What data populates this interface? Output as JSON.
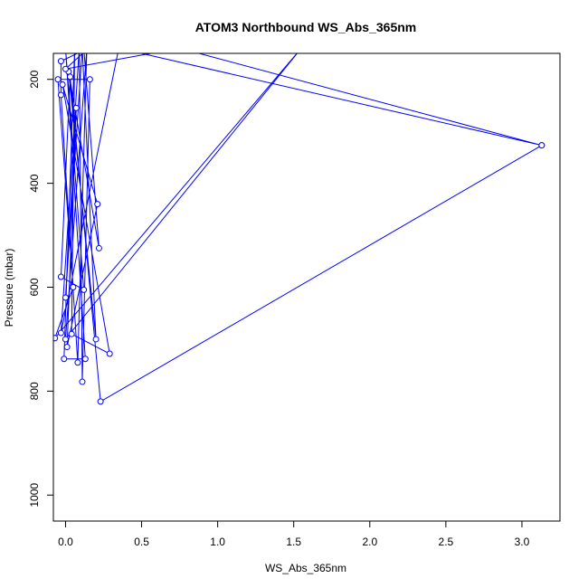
{
  "chart_data": {
    "type": "line",
    "title": "ATOM3 Northbound WS_Abs_365nm",
    "xlabel": "WS_Abs_365nm",
    "ylabel": "Pressure (mbar)",
    "xlim": [
      -0.08,
      3.25
    ],
    "ylim": [
      1050,
      150
    ],
    "y_reversed": true,
    "x_ticks": [
      0.0,
      0.5,
      1.0,
      1.5,
      2.0,
      2.5,
      3.0
    ],
    "x_tick_labels": [
      "0.0",
      "0.5",
      "1.0",
      "1.5",
      "2.0",
      "2.5",
      "3.0"
    ],
    "y_ticks": [
      200,
      400,
      600,
      800,
      1000
    ],
    "y_tick_labels": [
      "200",
      "400",
      "600",
      "800",
      "1000"
    ],
    "grid": false,
    "marker": "open-circle",
    "series_color": "#0000ff",
    "series": [
      {
        "points": [
          [
            0.12,
            140
          ],
          [
            0.22,
            525
          ],
          [
            0.02,
            185
          ],
          [
            0.2,
            700
          ],
          [
            0.11,
            140
          ],
          [
            0.0,
            620
          ],
          [
            0.07,
            255
          ],
          [
            0.01,
            715
          ],
          [
            0.21,
            440
          ],
          [
            -0.02,
            210
          ],
          [
            0.29,
            728
          ],
          [
            0.04,
            690
          ],
          [
            0.06,
            140
          ],
          [
            -0.01,
            738
          ],
          [
            0.13,
            738
          ],
          [
            0.0,
            140
          ],
          [
            0.12,
            605
          ],
          [
            -0.03,
            580
          ],
          [
            0.03,
            195
          ],
          [
            0.23,
            820
          ],
          [
            3.13,
            327
          ],
          [
            0.35,
            140
          ],
          [
            -0.03,
            688
          ],
          [
            0.09,
            140
          ],
          [
            0.11,
            782
          ],
          [
            0.16,
            200
          ],
          [
            -0.05,
            200
          ],
          [
            0.05,
            600
          ],
          [
            -0.07,
            698
          ],
          [
            1.55,
            140
          ],
          [
            0.0,
            700
          ],
          [
            0.14,
            140
          ],
          [
            0.08,
            745
          ],
          [
            -0.03,
            230
          ],
          [
            -0.03,
            165
          ],
          [
            0.15,
            140
          ],
          [
            0.0,
            180
          ],
          [
            0.75,
            140
          ],
          [
            3.13,
            327
          ]
        ]
      }
    ]
  }
}
